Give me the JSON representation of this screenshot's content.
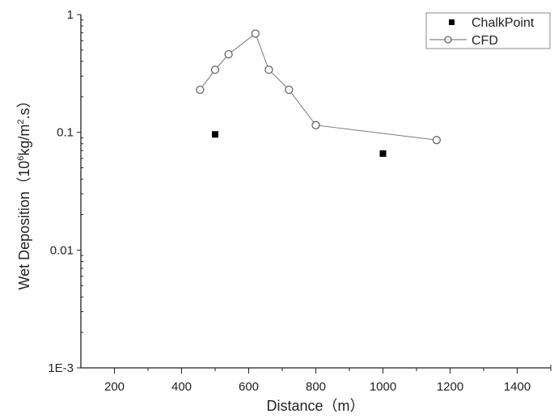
{
  "chart_data": {
    "type": "scatter",
    "title": "",
    "xlabel": "Distance（m）",
    "ylabel": "Wet Deposition（10⁶kg/m².s）",
    "xlim": [
      100,
      1500
    ],
    "ylim": [
      0.001,
      1
    ],
    "yscale": "log",
    "x_ticks": [
      200,
      400,
      600,
      800,
      1000,
      1200,
      1400
    ],
    "x_tick_labels": [
      "200",
      "400",
      "600",
      "800",
      "1000",
      "1200",
      "1400"
    ],
    "y_ticks": [
      1,
      0.1,
      0.01,
      0.001
    ],
    "y_tick_labels": [
      "1",
      "0.1",
      "0.01",
      "1E-3"
    ],
    "grid": false,
    "legend_position": "top-right",
    "series": [
      {
        "name": "ChalkPoint",
        "marker": "filled-square",
        "line": false,
        "color": "#000000",
        "x": [
          500,
          1000
        ],
        "y": [
          0.096,
          0.066
        ]
      },
      {
        "name": "CFD",
        "marker": "open-circle",
        "line": true,
        "color": "#666666",
        "x": [
          455,
          500,
          540,
          620,
          660,
          720,
          800,
          1160
        ],
        "y": [
          0.23,
          0.34,
          0.46,
          0.69,
          0.34,
          0.23,
          0.115,
          0.086
        ]
      }
    ]
  },
  "labels": {
    "x_title": "Distance（m）",
    "y_title_main": "Wet Deposition（10",
    "y_title_sup1": "6",
    "y_title_mid": "kg/m",
    "y_title_sup2": "2",
    "y_title_end": ".s）",
    "legend_chalk": "ChalkPoint",
    "legend_cfd": "CFD"
  }
}
